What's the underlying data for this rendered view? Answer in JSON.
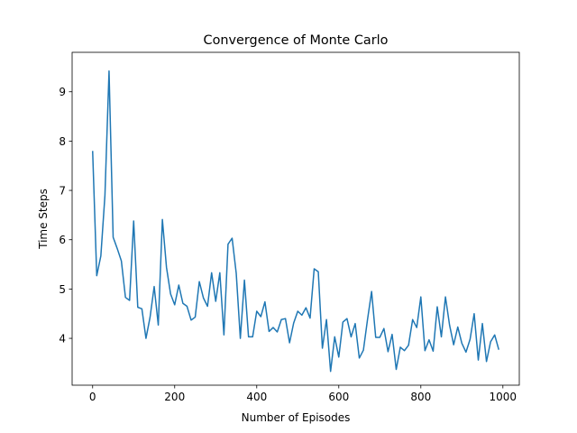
{
  "chart_data": {
    "type": "line",
    "title": "Convergence of Monte Carlo",
    "xlabel": "Number of Episodes",
    "ylabel": "Time Steps",
    "xlim": [
      -50,
      1040
    ],
    "ylim": [
      3.05,
      9.8
    ],
    "xticks": [
      0,
      200,
      400,
      600,
      800,
      1000
    ],
    "yticks": [
      4,
      5,
      6,
      7,
      8,
      9
    ],
    "grid": false,
    "series": [
      {
        "color": "#1f77b4",
        "x": [
          0,
          10,
          20,
          30,
          40,
          50,
          60,
          70,
          80,
          90,
          100,
          110,
          120,
          130,
          140,
          150,
          160,
          170,
          180,
          190,
          200,
          210,
          220,
          230,
          240,
          250,
          260,
          270,
          280,
          290,
          300,
          310,
          320,
          330,
          340,
          350,
          360,
          370,
          380,
          390,
          400,
          410,
          420,
          430,
          440,
          450,
          460,
          470,
          480,
          490,
          500,
          510,
          520,
          530,
          540,
          550,
          560,
          570,
          580,
          590,
          600,
          610,
          620,
          630,
          640,
          650,
          660,
          670,
          680,
          690,
          700,
          710,
          720,
          730,
          740,
          750,
          760,
          770,
          780,
          790,
          800,
          810,
          820,
          830,
          840,
          850,
          860,
          870,
          880,
          890,
          900,
          910,
          920,
          930,
          940,
          950,
          960,
          970,
          980,
          990
        ],
        "values": [
          7.8,
          5.27,
          5.67,
          6.9,
          9.42,
          6.05,
          5.82,
          5.57,
          4.83,
          4.77,
          6.38,
          4.63,
          4.6,
          4.0,
          4.43,
          5.05,
          4.27,
          6.41,
          5.44,
          4.9,
          4.68,
          5.08,
          4.71,
          4.65,
          4.37,
          4.43,
          5.15,
          4.82,
          4.65,
          5.33,
          4.75,
          5.33,
          4.07,
          5.91,
          6.03,
          5.32,
          4.0,
          5.18,
          4.03,
          4.03,
          4.55,
          4.44,
          4.74,
          4.14,
          4.22,
          4.13,
          4.38,
          4.4,
          3.91,
          4.31,
          4.55,
          4.47,
          4.62,
          4.41,
          5.41,
          5.35,
          3.8,
          4.38,
          3.33,
          4.03,
          3.62,
          4.33,
          4.4,
          4.03,
          4.3,
          3.6,
          3.76,
          4.38,
          4.95,
          4.02,
          4.02,
          4.2,
          3.73,
          4.08,
          3.37,
          3.82,
          3.75,
          3.86,
          4.38,
          4.22,
          4.84,
          3.75,
          3.97,
          3.74,
          4.64,
          4.03,
          4.84,
          4.27,
          3.87,
          4.23,
          3.9,
          3.72,
          3.98,
          4.5,
          3.56,
          4.3,
          3.53,
          3.93,
          4.07,
          3.77
        ]
      }
    ]
  }
}
